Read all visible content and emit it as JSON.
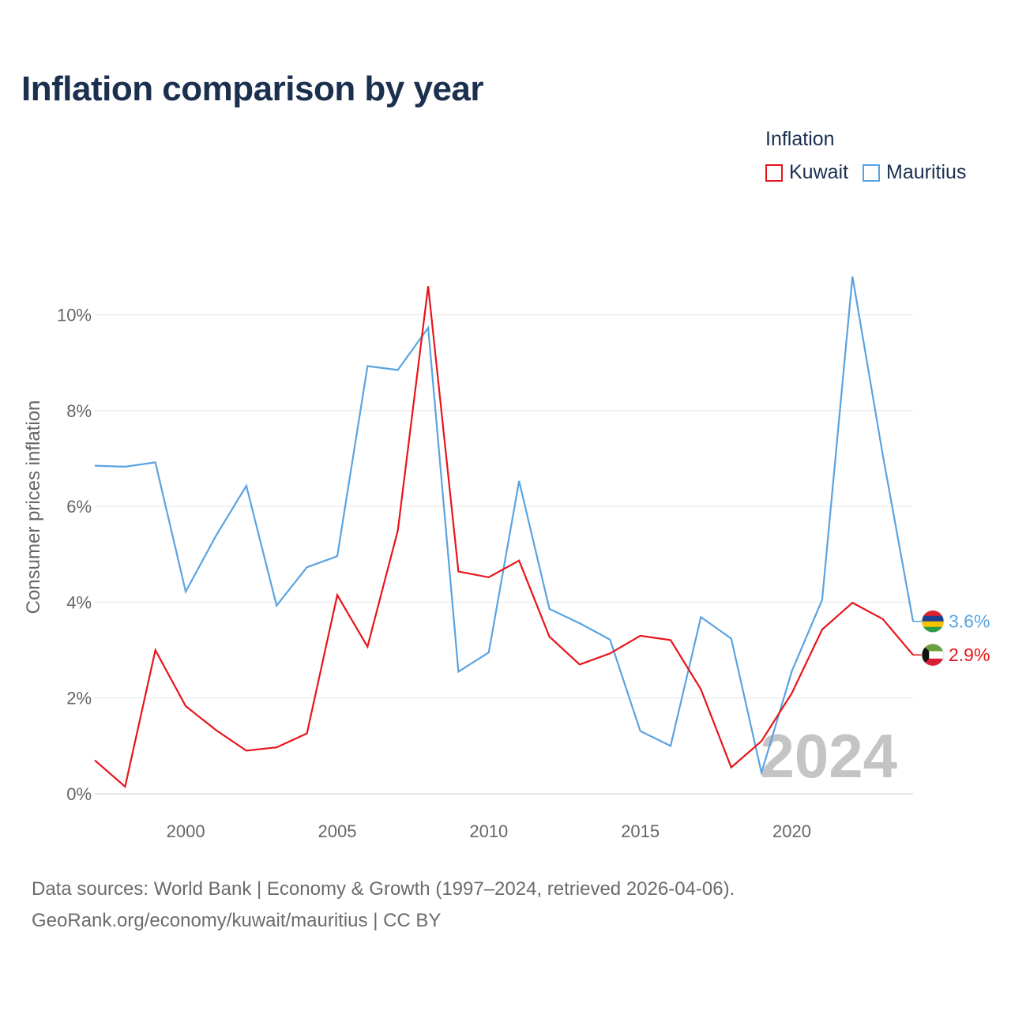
{
  "title": "Inflation comparison by year",
  "legend": {
    "title": "Inflation",
    "items": [
      {
        "label": "Kuwait",
        "color": "#e8141b"
      },
      {
        "label": "Mauritius",
        "color": "#5aa3e1"
      }
    ]
  },
  "sources": {
    "line1": "Data sources: World Bank | Economy & Growth (1997–2024, retrieved 2026-04-06).",
    "line2": "GeoRank.org/economy/kuwait/mauritius | CC BY"
  },
  "chart_data": {
    "type": "line",
    "title": "Inflation comparison by year",
    "xlabel": "",
    "ylabel": "Consumer prices inflation",
    "x": [
      1997,
      1998,
      1999,
      2000,
      2001,
      2002,
      2003,
      2004,
      2005,
      2006,
      2007,
      2008,
      2009,
      2010,
      2011,
      2012,
      2013,
      2014,
      2015,
      2016,
      2017,
      2018,
      2019,
      2020,
      2021,
      2022,
      2023,
      2024
    ],
    "xlim": [
      1997,
      2024
    ],
    "ylim": [
      0,
      11
    ],
    "xticks": [
      2000,
      2005,
      2010,
      2015,
      2020
    ],
    "xtick_labels": [
      "2000",
      "2005",
      "2010",
      "2015",
      "2020"
    ],
    "yticks": [
      0,
      2,
      4,
      6,
      8,
      10
    ],
    "ytick_labels": [
      "0%",
      "2%",
      "4%",
      "6%",
      "8%",
      "10%"
    ],
    "grid": true,
    "current_year_label": "2024",
    "series": [
      {
        "name": "Kuwait",
        "color": "#e8141b",
        "values": [
          0.7,
          0.15,
          3.0,
          1.83,
          1.33,
          0.9,
          0.97,
          1.26,
          4.15,
          3.07,
          5.5,
          10.6,
          4.64,
          4.52,
          4.87,
          3.28,
          2.7,
          2.93,
          3.3,
          3.21,
          2.18,
          0.55,
          1.1,
          2.1,
          3.43,
          3.99,
          3.65,
          2.9
        ],
        "end_label": "2.9%"
      },
      {
        "name": "Mauritius",
        "color": "#5aa3e1",
        "values": [
          6.85,
          6.83,
          6.92,
          4.22,
          5.39,
          6.43,
          3.93,
          4.73,
          4.96,
          8.93,
          8.85,
          9.73,
          2.55,
          2.95,
          6.53,
          3.86,
          3.56,
          3.22,
          1.31,
          1.0,
          3.69,
          3.24,
          0.44,
          2.56,
          4.05,
          10.8,
          7.08,
          3.6
        ],
        "end_label": "3.6%"
      }
    ]
  },
  "flags": {
    "kuwait": {
      "green": "#6a9f3e",
      "white": "#ffffff",
      "red": "#d81e34",
      "black": "#111111"
    },
    "mauritius": {
      "red": "#e0202c",
      "blue": "#1f3f8f",
      "yellow": "#f6c400",
      "green": "#2a9b48"
    }
  }
}
